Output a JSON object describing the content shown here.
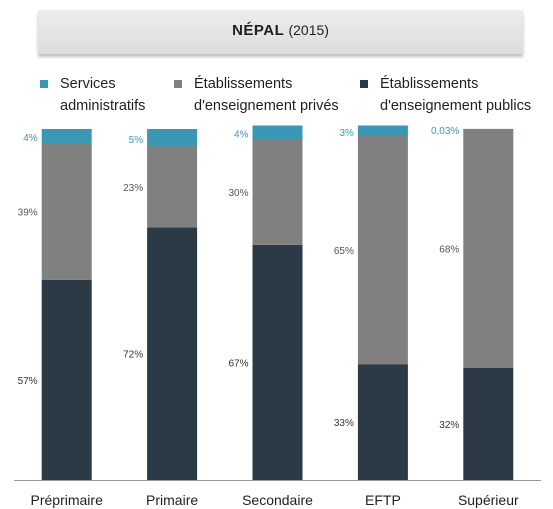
{
  "header": {
    "country": "NÉPAL",
    "year": "(2015)"
  },
  "legend": [
    {
      "label": "Services\nadministratifs",
      "color": "#3a98b4",
      "icon": "square"
    },
    {
      "label": "Établissements\nd'enseignement privés",
      "color": "#808080",
      "icon": "square"
    },
    {
      "label": "Établissements\nd'enseignement publics",
      "color": "#2b3a45",
      "icon": "square"
    }
  ],
  "chart_data": {
    "type": "bar",
    "stacked": true,
    "categories": [
      "Préprimaire",
      "Primaire",
      "Secondaire",
      "EFTP",
      "Supérieur"
    ],
    "ylim": [
      0,
      100
    ],
    "series": [
      {
        "name": "Établissements d'enseignement publics",
        "color": "#2b3a45",
        "values": [
          57,
          72,
          67,
          33,
          32
        ],
        "labels": [
          "57%",
          "72%",
          "67%",
          "33%",
          "32%"
        ],
        "label_color": "#333333"
      },
      {
        "name": "Établissements d'enseignement privés",
        "color": "#808080",
        "values": [
          39,
          23,
          30,
          65,
          68
        ],
        "labels": [
          "39%",
          "23%",
          "30%",
          "65%",
          "68%"
        ],
        "label_color": "#555555"
      },
      {
        "name": "Services administratifs",
        "color": "#3a98b4",
        "values": [
          4,
          5,
          4,
          3,
          0.03
        ],
        "labels": [
          "4%",
          "5%",
          "4%",
          "3%",
          "0,03%"
        ],
        "label_color": "#3a98b4"
      }
    ],
    "legend_position": "top",
    "grid": false
  }
}
